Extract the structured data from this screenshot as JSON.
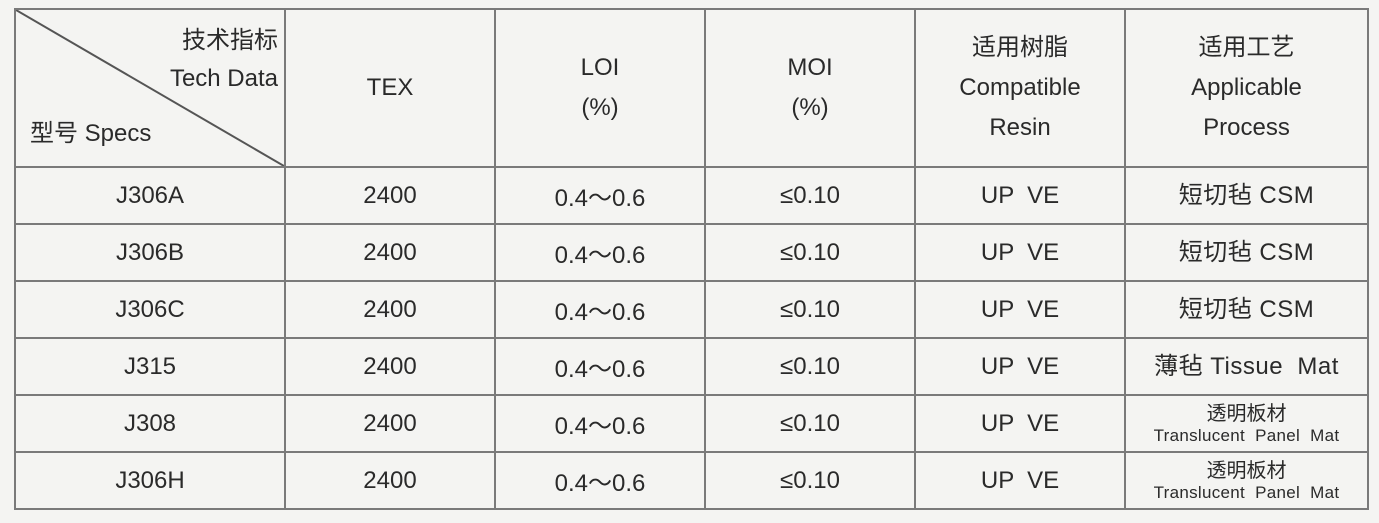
{
  "header": {
    "corner": {
      "top_zh": "技术指标",
      "top_en": "Tech Data",
      "bottom": "型号 Specs"
    },
    "tex": "TEX",
    "loi": {
      "label": "LOI",
      "unit": "(%)"
    },
    "moi": {
      "label": "MOI",
      "unit": "(%)"
    },
    "resin": {
      "zh": "适用树脂",
      "en1": "Compatible",
      "en2": "Resin"
    },
    "process": {
      "zh": "适用工艺",
      "en1": "Applicable",
      "en2": "Process"
    }
  },
  "rows": [
    {
      "spec": "J306A",
      "tex": "2400",
      "loi": "0.4～0.6",
      "moi": "≤0.10",
      "resin": "UP  VE",
      "process": "短切毡 CSM"
    },
    {
      "spec": "J306B",
      "tex": "2400",
      "loi": "0.4～0.6",
      "moi": "≤0.10",
      "resin": "UP  VE",
      "process": "短切毡 CSM"
    },
    {
      "spec": "J306C",
      "tex": "2400",
      "loi": "0.4～0.6",
      "moi": "≤0.10",
      "resin": "UP  VE",
      "process": "短切毡 CSM"
    },
    {
      "spec": "J315",
      "tex": "2400",
      "loi": "0.4～0.6",
      "moi": "≤0.10",
      "resin": "UP  VE",
      "process": "薄毡 Tissue  Mat"
    },
    {
      "spec": "J308",
      "tex": "2400",
      "loi": "0.4～0.6",
      "moi": "≤0.10",
      "resin": "UP  VE",
      "process_zh": "透明板材",
      "process_en": "Translucent  Panel  Mat"
    },
    {
      "spec": "J306H",
      "tex": "2400",
      "loi": "0.4～0.6",
      "moi": "≤0.10",
      "resin": "UP  VE",
      "process_zh": "透明板材",
      "process_en": "Translucent  Panel  Mat"
    }
  ]
}
